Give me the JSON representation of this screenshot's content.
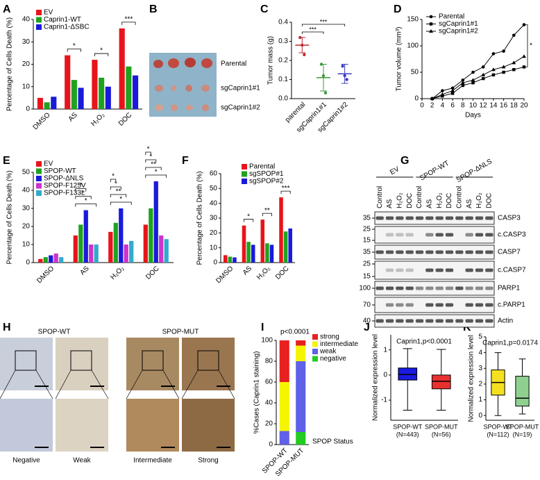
{
  "chart_data": [
    {
      "panel": "A",
      "type": "bar",
      "ylabel": "Percentage of Cells Death (%)",
      "categories": [
        "DMSO",
        "AS",
        "H₂O₂",
        "DOC"
      ],
      "series": [
        {
          "name": "EV",
          "color": "#e8141b",
          "values": [
            5,
            24,
            22,
            36
          ]
        },
        {
          "name": "Caprin1-WT",
          "color": "#1fa31f",
          "values": [
            3,
            13,
            14,
            19
          ]
        },
        {
          "name": "Caprin1-ΔSBC",
          "color": "#1a1adb",
          "values": [
            5.5,
            9.5,
            10,
            15
          ]
        }
      ],
      "ylim": [
        0,
        40
      ],
      "yticks": [
        0,
        10,
        20,
        30,
        40
      ],
      "annotations": [
        {
          "text": "*",
          "category": "AS"
        },
        {
          "text": "*",
          "category": "H₂O₂"
        },
        {
          "text": "***",
          "category": "DOC"
        }
      ]
    },
    {
      "panel": "C",
      "type": "dot",
      "ylabel": "Tumor mass (g)",
      "categories": [
        "parental",
        "sgCaprin1#1",
        "sgCaprin1#2"
      ],
      "colors": [
        "#c0272d",
        "#3a9a3a",
        "#3b3bc4"
      ],
      "values": [
        0.28,
        0.11,
        0.13
      ],
      "errors": [
        0.04,
        0.07,
        0.05
      ],
      "points": [
        [
          0.32,
          0.28,
          0.23
        ],
        [
          0.18,
          0.12,
          0.03
        ],
        [
          0.17,
          0.12,
          0.1
        ]
      ],
      "ylim": [
        0,
        0.4
      ],
      "yticks": [
        {
          "value": 0,
          "label": "0.0"
        },
        0.1,
        0.2,
        0.3,
        0.4
      ],
      "annotations": [
        {
          "text": "***",
          "category": "parental"
        },
        {
          "text": "***",
          "category": "parental"
        }
      ]
    },
    {
      "panel": "D",
      "type": "line",
      "ylabel": "Tumor volume (mm³)",
      "xlabel": "Days",
      "color": "#000000",
      "x": [
        2,
        4,
        6,
        8,
        10,
        12,
        14,
        16,
        18,
        20
      ],
      "series": [
        {
          "name": "Parental",
          "marker": "circle",
          "values": [
            0,
            15,
            20,
            35,
            50,
            60,
            85,
            90,
            120,
            140
          ]
        },
        {
          "name": "sgCaprin1#1",
          "marker": "square",
          "values": [
            0,
            5,
            10,
            25,
            30,
            38,
            45,
            50,
            55,
            60
          ]
        },
        {
          "name": "sgCaprin1#2",
          "marker": "triangle",
          "values": [
            0,
            8,
            15,
            30,
            35,
            45,
            55,
            60,
            68,
            80
          ]
        }
      ],
      "xlim": [
        0,
        20
      ],
      "xticks": [
        0,
        2,
        4,
        6,
        8,
        10,
        12,
        14,
        16,
        18,
        20
      ],
      "ylim": [
        0,
        150
      ],
      "yticks": [
        0,
        50,
        100,
        150
      ],
      "annotations": [
        {
          "text": "*"
        }
      ]
    },
    {
      "panel": "E",
      "type": "bar",
      "ylabel": "Percentage of Cells Death (%)",
      "categories": [
        "DMSO",
        "AS",
        "H₂O₂",
        "DOC"
      ],
      "series": [
        {
          "name": "EV",
          "color": "#e8141b",
          "values": [
            2,
            15,
            17,
            21
          ]
        },
        {
          "name": "SPOP-WT",
          "color": "#1fa31f",
          "values": [
            3,
            21,
            22,
            30
          ]
        },
        {
          "name": "SPOP-ΔNLS",
          "color": "#1a1adb",
          "values": [
            4,
            29,
            30,
            45
          ]
        },
        {
          "name": "SPOP-F125V",
          "color": "#cc33cc",
          "values": [
            5,
            10,
            10,
            15
          ]
        },
        {
          "name": "SPOP-F133L",
          "color": "#33aacc",
          "values": [
            3,
            10,
            12,
            13
          ]
        }
      ],
      "ylim": [
        0,
        50
      ],
      "yticks": [
        0,
        10,
        20,
        30,
        40,
        50
      ],
      "annotations": [
        {
          "text": "*",
          "category": "AS"
        },
        {
          "text": "*",
          "category": "AS"
        },
        {
          "text": "*",
          "category": "AS"
        },
        {
          "text": "*",
          "category": "H₂O₂"
        },
        {
          "text": "**",
          "category": "H₂O₂"
        },
        {
          "text": "*",
          "category": "H₂O₂"
        },
        {
          "text": "*",
          "category": "H₂O₂"
        },
        {
          "text": "*",
          "category": "DOC"
        },
        {
          "text": "**",
          "category": "DOC"
        },
        {
          "text": "*",
          "category": "DOC"
        },
        {
          "text": "*",
          "category": "DOC"
        }
      ]
    },
    {
      "panel": "F",
      "type": "bar",
      "ylabel": "Percentage of Cells Death (%)",
      "categories": [
        "DMSO",
        "AS",
        "H₂O₂",
        "DOC"
      ],
      "series": [
        {
          "name": "Parental",
          "color": "#e8141b",
          "values": [
            5,
            25,
            29,
            44
          ]
        },
        {
          "name": "sgSPOP#1",
          "color": "#1fa31f",
          "values": [
            4,
            14,
            13,
            21
          ]
        },
        {
          "name": "sgSPOP#2",
          "color": "#1a1adb",
          "values": [
            3.5,
            12,
            12,
            23
          ]
        }
      ],
      "ylim": [
        0,
        60
      ],
      "yticks": [
        0,
        10,
        20,
        30,
        40,
        50,
        60
      ],
      "annotations": [
        {
          "text": "*",
          "category": "AS"
        },
        {
          "text": "**",
          "category": "H₂O₂"
        },
        {
          "text": "***",
          "category": "DOC"
        }
      ]
    },
    {
      "panel": "I",
      "type": "stacked_bar",
      "title": "p<0.0001",
      "ylabel": "%Cases (Caprin1 staining)",
      "xlabel": "SPOP Status",
      "categories": [
        "SPOP-WT",
        "SPOP-MUT"
      ],
      "series": [
        {
          "name": "negative",
          "color": "#22cc22",
          "values": [
            0,
            12
          ]
        },
        {
          "name": "weak",
          "color": "#6060e8",
          "values": [
            13,
            68
          ]
        },
        {
          "name": "intermediate",
          "color": "#f5f500",
          "values": [
            47,
            15
          ]
        },
        {
          "name": "strong",
          "color": "#e82020",
          "values": [
            40,
            5
          ]
        }
      ],
      "ylim": [
        0,
        100
      ],
      "yticks": [
        0,
        20,
        40,
        60,
        80,
        100
      ]
    },
    {
      "panel": "J",
      "type": "box",
      "title": "Caprin1,p<0.0001",
      "ylabel": "Normalized expression level",
      "categories": [
        "SPOP-WT",
        "SPOP-MUT"
      ],
      "sublabels": [
        "(N=443)",
        "(N=56)"
      ],
      "colors": [
        "#1a1ae0",
        "#e83030"
      ],
      "boxes": [
        {
          "min": -1.4,
          "q1": -0.2,
          "median": 0.02,
          "q3": 0.28,
          "max": 1.05
        },
        {
          "min": -1.4,
          "q1": -0.55,
          "median": -0.25,
          "q3": 0,
          "max": 1.02
        }
      ],
      "ylim": [
        -1.8,
        1.6
      ],
      "yticks": [
        -1,
        0,
        1
      ]
    },
    {
      "panel": "K",
      "type": "box",
      "title": "Caprin1,p=0.0174",
      "ylabel": "Normalized expression level",
      "categories": [
        "SPOP-WT",
        "SPOP-MUT"
      ],
      "sublabels": [
        "(N=112)",
        "(N=19)"
      ],
      "colors": [
        "#f5e020",
        "#8fd08f"
      ],
      "boxes": [
        {
          "min": 0,
          "q1": 1.3,
          "median": 2.1,
          "q3": 2.9,
          "max": 4.0
        },
        {
          "min": 0.1,
          "q1": 0.6,
          "median": 1.1,
          "q3": 2.5,
          "max": 3.6
        }
      ],
      "ylim": [
        -0.3,
        5
      ],
      "yticks": [
        0,
        1,
        2,
        3,
        4,
        5
      ]
    }
  ],
  "panel_b": {
    "panel": "B",
    "labels": [
      "Parental",
      "sgCaprin1#1",
      "sgCaprin1#2"
    ]
  },
  "panel_g": {
    "panel": "G",
    "groups": [
      "EV",
      "SPOP-WT",
      "SPOP-ΔNLS"
    ],
    "lanes": [
      "Control",
      "AS",
      "H₂O₂",
      "DOC",
      "Control",
      "AS",
      "H₂O₂",
      "DOC",
      "Control",
      "AS",
      "H₂O₂",
      "DOC"
    ],
    "rows": [
      {
        "label": "CASP3",
        "mw": [
          "35"
        ]
      },
      {
        "label": "c.CASP3",
        "mw": [
          "25",
          "15"
        ]
      },
      {
        "label": "CASP7",
        "mw": [
          "35"
        ]
      },
      {
        "label": "c.CASP7",
        "mw": [
          "25",
          "15"
        ]
      },
      {
        "label": "PARP1",
        "mw": [
          "100"
        ]
      },
      {
        "label": "c.PARP1",
        "mw": [
          "70"
        ]
      },
      {
        "label": "Actin",
        "mw": [
          "40"
        ]
      }
    ]
  },
  "panel_h": {
    "panel": "H",
    "groups": [
      "SPOP-WT",
      "SPOP-MUT"
    ],
    "labels": [
      "Negative",
      "Weak",
      "Intermediate",
      "Strong"
    ]
  }
}
